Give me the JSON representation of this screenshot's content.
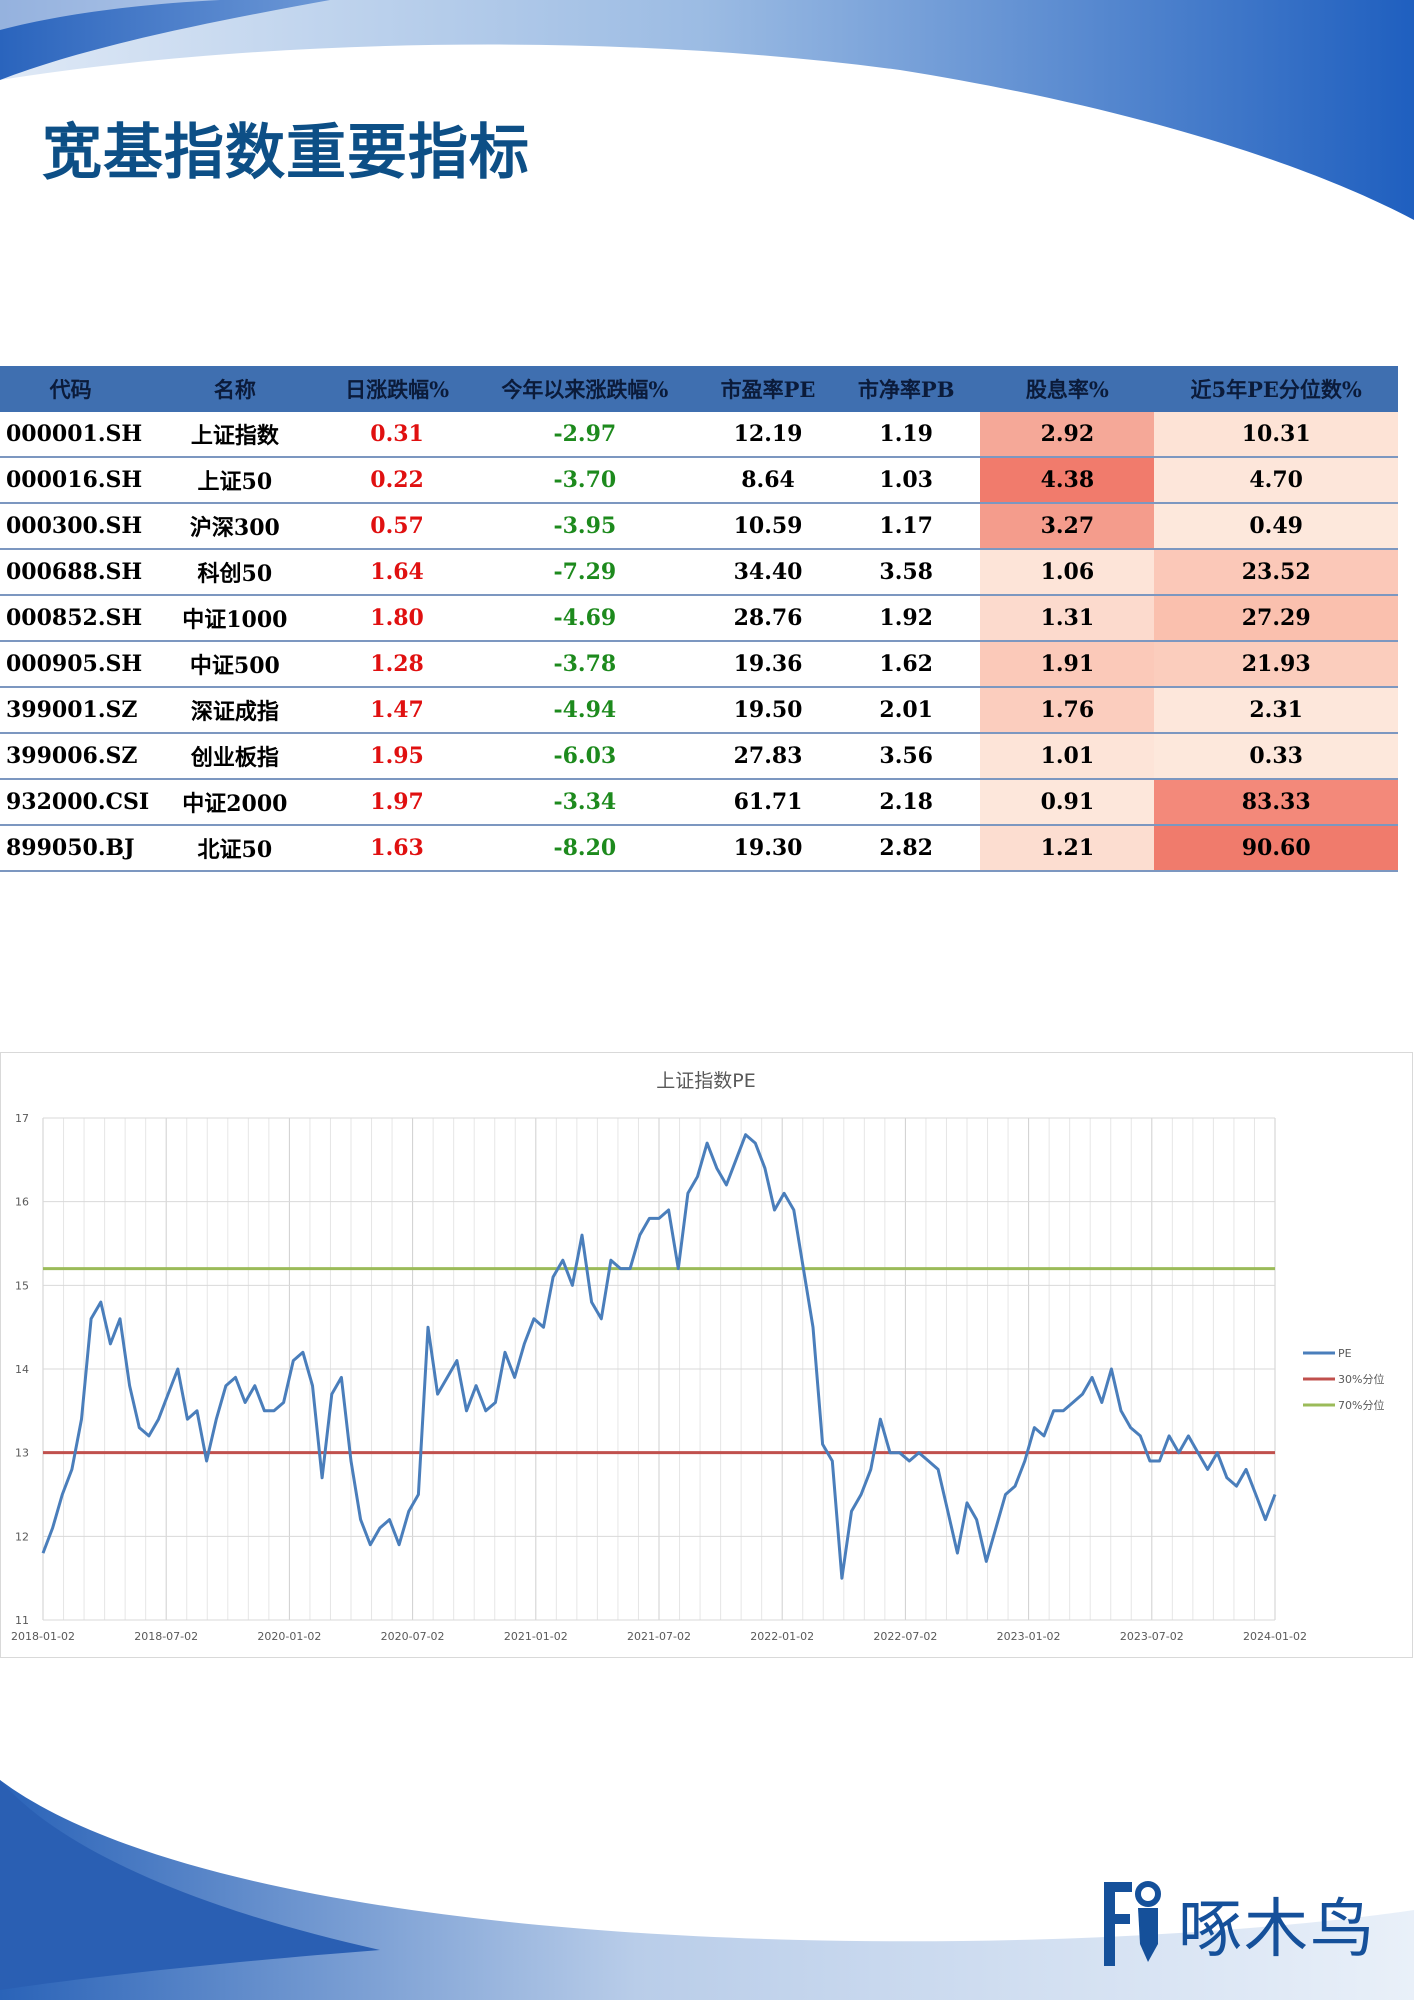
{
  "page": {
    "title": "宽基指数重要指标"
  },
  "colors": {
    "brand_blue": "#1f5fbf",
    "title_blue": "#0d4f86",
    "header_bg": "#3f6fb0",
    "up_red": "#e01010",
    "down_green": "#1d8a1d"
  },
  "table": {
    "columns": [
      "代码",
      "名称",
      "日涨跌幅%",
      "今年以来涨跌幅%",
      "市盈率PE",
      "市净率PB",
      "股息率%",
      "近5年PE分位数%"
    ],
    "rows": [
      {
        "code": "000001.SH",
        "name": "上证指数",
        "daily": "0.31",
        "ytd": "-2.97",
        "pe": "12.19",
        "pb": "1.19",
        "dividend": "2.92",
        "pe_pct": "10.31",
        "dividend_bg": "#f5a898",
        "pe_pct_bg": "#fde3d6"
      },
      {
        "code": "000016.SH",
        "name": "上证50",
        "daily": "0.22",
        "ytd": "-3.70",
        "pe": "8.64",
        "pb": "1.03",
        "dividend": "4.38",
        "pe_pct": "4.70",
        "dividend_bg": "#f17b6c",
        "pe_pct_bg": "#fde6da"
      },
      {
        "code": "000300.SH",
        "name": "沪深300",
        "daily": "0.57",
        "ytd": "-3.95",
        "pe": "10.59",
        "pb": "1.17",
        "dividend": "3.27",
        "pe_pct": "0.49",
        "dividend_bg": "#f49c8c",
        "pe_pct_bg": "#fde8dc"
      },
      {
        "code": "000688.SH",
        "name": "科创50",
        "daily": "1.64",
        "ytd": "-7.29",
        "pe": "34.40",
        "pb": "3.58",
        "dividend": "1.06",
        "pe_pct": "23.52",
        "dividend_bg": "#fde4d8",
        "pe_pct_bg": "#fbc8b8"
      },
      {
        "code": "000852.SH",
        "name": "中证1000",
        "daily": "1.80",
        "ytd": "-4.69",
        "pe": "28.76",
        "pb": "1.92",
        "dividend": "1.31",
        "pe_pct": "27.29",
        "dividend_bg": "#fcdacd",
        "pe_pct_bg": "#fac0ae"
      },
      {
        "code": "000905.SH",
        "name": "中证500",
        "daily": "1.28",
        "ytd": "-3.78",
        "pe": "19.36",
        "pb": "1.62",
        "dividend": "1.91",
        "pe_pct": "21.93",
        "dividend_bg": "#fbc9b9",
        "pe_pct_bg": "#fbcdbd"
      },
      {
        "code": "399001.SZ",
        "name": "深证成指",
        "daily": "1.47",
        "ytd": "-4.94",
        "pe": "19.50",
        "pb": "2.01",
        "dividend": "1.76",
        "pe_pct": "2.31",
        "dividend_bg": "#fbcdbe",
        "pe_pct_bg": "#fde7db"
      },
      {
        "code": "399006.SZ",
        "name": "创业板指",
        "daily": "1.95",
        "ytd": "-6.03",
        "pe": "27.83",
        "pb": "3.56",
        "dividend": "1.01",
        "pe_pct": "0.33",
        "dividend_bg": "#fde4d8",
        "pe_pct_bg": "#fde8dc"
      },
      {
        "code": "932000.CSI",
        "name": "中证2000",
        "daily": "1.97",
        "ytd": "-3.34",
        "pe": "61.71",
        "pb": "2.18",
        "dividend": "0.91",
        "pe_pct": "83.33",
        "dividend_bg": "#fde7db",
        "pe_pct_bg": "#f3897a"
      },
      {
        "code": "899050.BJ",
        "name": "北证50",
        "daily": "1.63",
        "ytd": "-8.20",
        "pe": "19.30",
        "pb": "2.82",
        "dividend": "1.21",
        "pe_pct": "90.60",
        "dividend_bg": "#fcddd0",
        "pe_pct_bg": "#f07b6c"
      }
    ]
  },
  "chart_data": {
    "type": "line",
    "title": "上证指数PE",
    "xlabel": "",
    "ylabel": "",
    "ylim": [
      11,
      17
    ],
    "yticks": [
      "11",
      "12",
      "13",
      "14",
      "15",
      "16",
      "17"
    ],
    "xlim": [
      "2018-01-02",
      "2024-01-02"
    ],
    "xticks": [
      "2018-01-02",
      "2018-07-02",
      "2020-01-02",
      "2020-07-02",
      "2021-01-02",
      "2021-07-02",
      "2022-01-02",
      "2022-07-02",
      "2023-01-02",
      "2023-07-02",
      "2024-01-02"
    ],
    "grid": true,
    "legend": "right",
    "series": [
      {
        "name": "PE",
        "color": "#4a7ebb",
        "values": [
          11.8,
          12.1,
          12.5,
          12.8,
          13.4,
          14.6,
          14.8,
          14.3,
          14.6,
          13.8,
          13.3,
          13.2,
          13.4,
          13.7,
          14.0,
          13.4,
          13.5,
          12.9,
          13.4,
          13.8,
          13.9,
          13.6,
          13.8,
          13.5,
          13.5,
          13.6,
          14.1,
          14.2,
          13.8,
          12.7,
          13.7,
          13.9,
          12.9,
          12.2,
          11.9,
          12.1,
          12.2,
          11.9,
          12.3,
          12.5,
          14.5,
          13.7,
          13.9,
          14.1,
          13.5,
          13.8,
          13.5,
          13.6,
          14.2,
          13.9,
          14.3,
          14.6,
          14.5,
          15.1,
          15.3,
          15.0,
          15.6,
          14.8,
          14.6,
          15.3,
          15.2,
          15.2,
          15.6,
          15.8,
          15.8,
          15.9,
          15.2,
          16.1,
          16.3,
          16.7,
          16.4,
          16.2,
          16.5,
          16.8,
          16.7,
          16.4,
          15.9,
          16.1,
          15.9,
          15.2,
          14.5,
          13.1,
          12.9,
          11.5,
          12.3,
          12.5,
          12.8,
          13.4,
          13.0,
          13.0,
          12.9,
          13.0,
          12.9,
          12.8,
          12.3,
          11.8,
          12.4,
          12.2,
          11.7,
          12.1,
          12.5,
          12.6,
          12.9,
          13.3,
          13.2,
          13.5,
          13.5,
          13.6,
          13.7,
          13.9,
          13.6,
          14.0,
          13.5,
          13.3,
          13.2,
          12.9,
          12.9,
          13.2,
          13.0,
          13.2,
          13.0,
          12.8,
          13.0,
          12.7,
          12.6,
          12.8,
          12.5,
          12.2,
          12.5
        ]
      },
      {
        "name": "30%分位",
        "color": "#c0504d",
        "values": [
          13.0,
          13.0
        ]
      },
      {
        "name": "70%分位",
        "color": "#9bbb59",
        "values": [
          15.2,
          15.2
        ]
      }
    ]
  },
  "logo": {
    "text": "啄木鸟"
  }
}
